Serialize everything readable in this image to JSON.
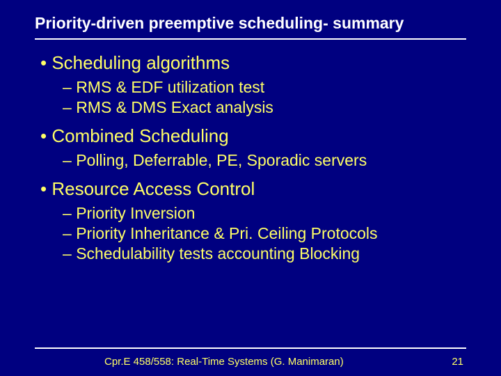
{
  "colors": {
    "background": "#000080",
    "title_text": "#ffffff",
    "body_text": "#ffff66",
    "rule": "#ffffff"
  },
  "typography": {
    "title_fontsize": 23,
    "title_weight": "bold",
    "bullet_l1_fontsize": 26,
    "bullet_l2_fontsize": 23,
    "footer_fontsize": 15,
    "font_family": "Arial"
  },
  "slide": {
    "title": "Priority-driven preemptive scheduling- summary",
    "sections": [
      {
        "heading": "Scheduling algorithms",
        "items": [
          "RMS & EDF utilization test",
          "RMS & DMS Exact analysis"
        ]
      },
      {
        "heading": "Combined Scheduling",
        "items": [
          "Polling, Deferrable, PE, Sporadic servers"
        ]
      },
      {
        "heading": "Resource Access Control",
        "items": [
          "Priority Inversion",
          "Priority Inheritance & Pri. Ceiling Protocols",
          "Schedulability tests accounting Blocking"
        ]
      }
    ]
  },
  "footer": {
    "text": "Cpr.E 458/558: Real-Time Systems (G. Manimaran)",
    "page": "21"
  }
}
